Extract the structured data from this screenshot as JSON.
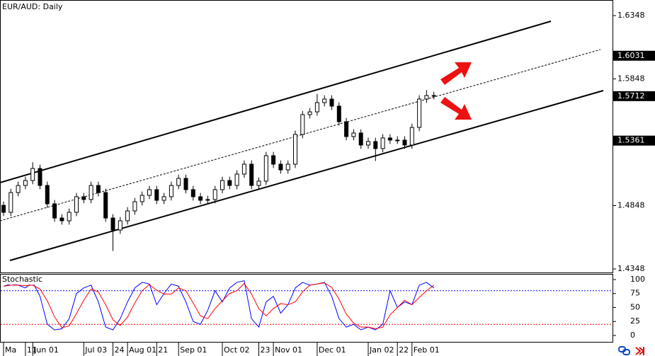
{
  "chart_data": [
    {
      "type": "candlestick",
      "title": "EUR/AUD: Daily",
      "categories": [
        "Ma",
        null,
        null,
        "11",
        "Jun 01",
        null,
        null,
        null,
        null,
        null,
        null,
        "Jul 03",
        null,
        null,
        null,
        "24",
        null,
        "Aug 01",
        null,
        null,
        null,
        "21",
        null,
        null,
        "Sep 01",
        null,
        null,
        null,
        null,
        null,
        "Oct 02",
        null,
        null,
        null,
        null,
        "23",
        null,
        "Nov 01",
        null,
        null,
        null,
        null,
        null,
        "Dec 01",
        null,
        null,
        null,
        null,
        null,
        null,
        "Jan 02",
        null,
        null,
        null,
        "22",
        null,
        "Feb 01",
        null,
        null,
        null
      ],
      "open": [
        1.485,
        1.4795,
        1.4951,
        1.5007,
        1.5046,
        1.5141,
        1.5007,
        1.4862,
        1.475,
        1.4728,
        1.4795,
        1.4918,
        1.4896,
        1.5007,
        1.4951,
        1.475,
        1.4655,
        1.4728,
        1.4806,
        1.4879,
        1.4929,
        1.4974,
        1.489,
        1.4918,
        1.5007,
        1.5063,
        1.4974,
        1.4918,
        1.489,
        1.4896,
        1.4974,
        1.5046,
        1.5007,
        1.5097,
        1.5175,
        1.5007,
        1.5041,
        1.5242,
        1.5175,
        1.513,
        1.5175,
        1.541,
        1.5566,
        1.5588,
        1.5661,
        1.5689,
        1.5633,
        1.551,
        1.5393,
        1.5421,
        1.5326,
        1.5354,
        1.5298,
        1.5382,
        1.5365,
        1.5365,
        1.5326,
        1.5465,
        1.5689,
        1.5717
      ],
      "high": [
        1.488,
        1.4981,
        1.5037,
        1.5076,
        1.519,
        1.5171,
        1.5037,
        1.4892,
        1.478,
        1.4825,
        1.4948,
        1.4948,
        1.5037,
        1.5037,
        1.4981,
        1.478,
        1.4758,
        1.4836,
        1.4909,
        1.4959,
        1.5004,
        1.5004,
        1.4948,
        1.5037,
        1.5093,
        1.5093,
        1.5004,
        1.4948,
        1.4926,
        1.5004,
        1.5076,
        1.5076,
        1.5127,
        1.5205,
        1.5205,
        1.5071,
        1.5272,
        1.5272,
        1.5205,
        1.5205,
        1.544,
        1.5596,
        1.5618,
        1.573,
        1.5719,
        1.5719,
        1.5663,
        1.554,
        1.5451,
        1.5451,
        1.5384,
        1.5384,
        1.5412,
        1.5412,
        1.5395,
        1.5395,
        1.5495,
        1.5719,
        1.576,
        1.5747
      ],
      "low": [
        1.4765,
        1.4765,
        1.4921,
        1.4977,
        1.5016,
        1.4977,
        1.4832,
        1.472,
        1.4698,
        1.4698,
        1.4765,
        1.4866,
        1.4866,
        1.4921,
        1.472,
        1.449,
        1.4625,
        1.4698,
        1.4776,
        1.4849,
        1.4899,
        1.486,
        1.486,
        1.4888,
        1.4977,
        1.4944,
        1.4888,
        1.486,
        1.486,
        1.4866,
        1.4944,
        1.4977,
        1.4977,
        1.5067,
        1.4977,
        1.4977,
        1.5011,
        1.5145,
        1.51,
        1.51,
        1.5145,
        1.538,
        1.5536,
        1.5558,
        1.5631,
        1.5603,
        1.548,
        1.5363,
        1.5363,
        1.5296,
        1.5296,
        1.52,
        1.5268,
        1.5335,
        1.5335,
        1.5296,
        1.5296,
        1.5435,
        1.5659,
        1.5687
      ],
      "close": [
        1.4795,
        1.4951,
        1.5007,
        1.5046,
        1.5141,
        1.5007,
        1.4862,
        1.475,
        1.4728,
        1.4795,
        1.4918,
        1.4896,
        1.5007,
        1.4951,
        1.475,
        1.4655,
        1.4728,
        1.4806,
        1.4879,
        1.4929,
        1.4974,
        1.489,
        1.4918,
        1.5007,
        1.5063,
        1.4974,
        1.4918,
        1.489,
        1.4896,
        1.4974,
        1.5046,
        1.5007,
        1.5097,
        1.5175,
        1.5007,
        1.5041,
        1.5242,
        1.5175,
        1.513,
        1.5175,
        1.541,
        1.5566,
        1.5588,
        1.5661,
        1.5689,
        1.5633,
        1.551,
        1.5393,
        1.5421,
        1.5326,
        1.5354,
        1.5298,
        1.5382,
        1.5365,
        1.5365,
        1.5326,
        1.5465,
        1.5689,
        1.5717,
        1.5717
      ],
      "up_color": "#ffffff",
      "down_color": "#000000",
      "ylim": [
        1.432,
        1.6471
      ],
      "yticks": [
        1.6348,
        1.5848,
        1.4848,
        1.4348
      ],
      "levels": [
        1.6031,
        1.5712,
        1.5361
      ]
    },
    {
      "type": "line",
      "title": "Stochastic",
      "series": [
        {
          "color": "#0000ff",
          "values": [
            88,
            92,
            90,
            85,
            95,
            70,
            20,
            10,
            12,
            30,
            75,
            85,
            90,
            60,
            15,
            10,
            30,
            60,
            85,
            95,
            92,
            55,
            75,
            92,
            88,
            60,
            25,
            20,
            45,
            80,
            60,
            85,
            95,
            98,
            30,
            15,
            60,
            70,
            40,
            55,
            85,
            95,
            90,
            92,
            95,
            70,
            30,
            15,
            20,
            10,
            15,
            10,
            20,
            80,
            50,
            60,
            55,
            90,
            95,
            85
          ]
        },
        {
          "color": "#ff0000",
          "values": [
            88,
            90,
            90,
            89,
            90,
            83,
            62,
            33,
            14,
            17,
            39,
            63,
            83,
            78,
            55,
            28,
            18,
            33,
            58,
            80,
            91,
            81,
            74,
            74,
            85,
            80,
            58,
            35,
            30,
            48,
            62,
            75,
            80,
            93,
            74,
            48,
            35,
            48,
            57,
            55,
            60,
            78,
            90,
            92,
            94,
            86,
            65,
            38,
            22,
            15,
            15,
            12,
            15,
            37,
            50,
            63,
            55,
            68,
            80,
            90
          ]
        }
      ],
      "ylim": [
        -11.4,
        110.1
      ],
      "yticks": [
        0,
        25,
        50,
        75,
        100
      ],
      "levels": [
        {
          "value": 80,
          "color": "#0000ff"
        },
        {
          "value": 20,
          "color": "#ff0000"
        }
      ]
    }
  ]
}
